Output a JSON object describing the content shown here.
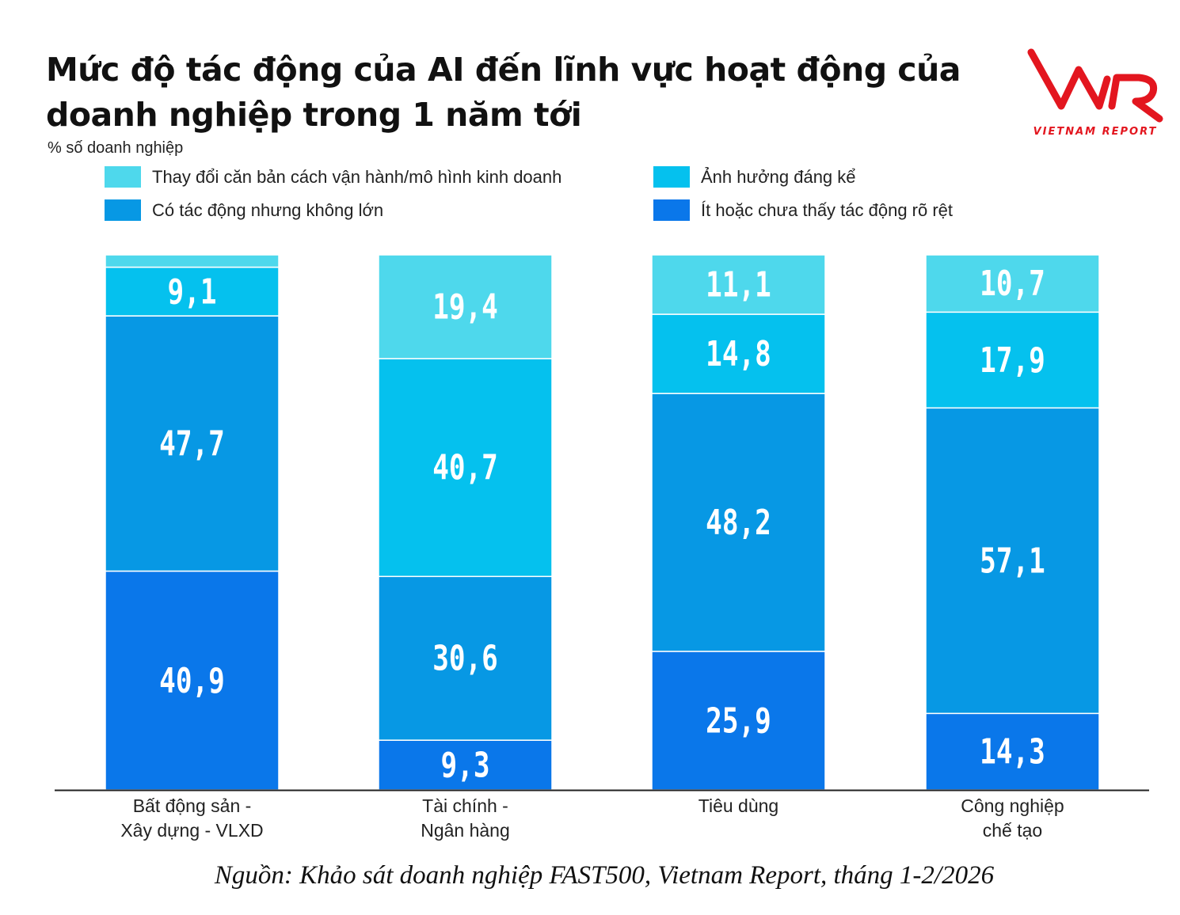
{
  "title": "Mức độ tác động của AI đến lĩnh vực hoạt động của doanh nghiệp trong 1 năm tới",
  "subtitle": "% số doanh nghiệp",
  "logo": {
    "text": "VNR",
    "tagline": "VIETNAM REPORT",
    "color": "#e3161f"
  },
  "source": "Nguồn: Khảo sát doanh nghiệp FAST500, Vietnam Report, tháng 1-2/2026",
  "chart_data": {
    "type": "bar",
    "stacked": true,
    "orientation": "vertical",
    "categories": [
      "Bất động sản -\nXây dựng - VLXD",
      "Tài chính -\nNgân hàng",
      "Tiêu dùng",
      "Công nghiệp\nchế tạo"
    ],
    "series": [
      {
        "name": "Ít hoặc chưa thấy tác động rõ rệt",
        "color": "#0a77ea",
        "values": [
          40.9,
          9.3,
          25.9,
          14.3
        ],
        "labels": [
          "40,9",
          "9,3",
          "25,9",
          "14,3"
        ]
      },
      {
        "name": "Có tác động nhưng không lớn",
        "color": "#0798e4",
        "values": [
          47.7,
          30.6,
          48.2,
          57.1
        ],
        "labels": [
          "47,7",
          "30,6",
          "48,2",
          "57,1"
        ]
      },
      {
        "name": "Ảnh hưởng đáng kể",
        "color": "#05c1ee",
        "values": [
          9.1,
          40.7,
          14.8,
          17.9
        ],
        "labels": [
          "9,1",
          "40,7",
          "14,8",
          "17,9"
        ]
      },
      {
        "name": "Thay đổi căn bản cách vận hành/mô hình kinh doanh",
        "color": "#4ed8ec",
        "values": [
          2.3,
          19.4,
          11.1,
          10.7
        ],
        "labels": [
          "",
          "19,4",
          "11,1",
          "10,7"
        ]
      }
    ],
    "ylim": [
      0,
      100
    ],
    "grid": false,
    "legend": "top",
    "legend_order": [
      "Thay đổi căn bản cách vận hành/mô hình kinh doanh",
      "Ảnh hưởng đáng kể",
      "Có tác động nhưng không lớn",
      "Ít hoặc chưa thấy tác động rõ rệt"
    ],
    "xlabel": "",
    "ylabel": "% số doanh nghiệp"
  }
}
